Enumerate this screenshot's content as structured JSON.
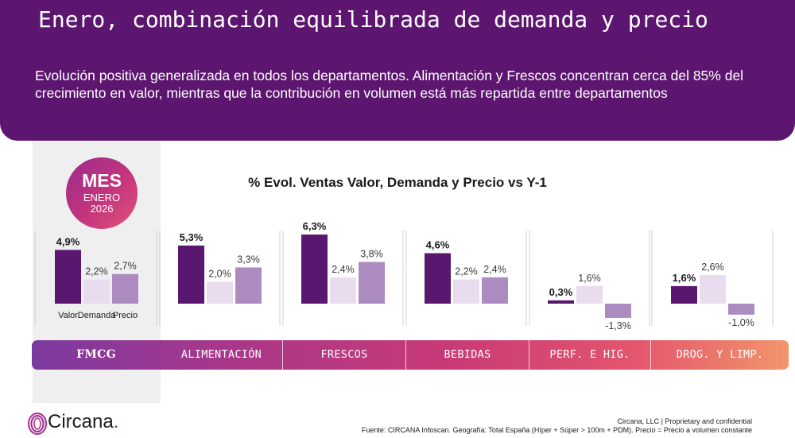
{
  "header": {
    "title": "Enero, combinación equilibrada de demanda y precio",
    "subtitle": "Evolución positiva generalizada en todos los departamentos. Alimentación y Frescos concentran cerca del 85% del crecimiento en valor, mientras que la contribución en volumen está más repartida entre departamentos"
  },
  "badge": {
    "mes": "MES",
    "month": "ENERO",
    "year": "2026"
  },
  "colors": {
    "valor": "#5a176f",
    "demanda": "#e9dcee",
    "precio": "#ab8bc0",
    "header": "#5c1670"
  },
  "chart_data": {
    "type": "bar",
    "title": "% Evol. Ventas Valor, Demanda y Precio vs Y-1",
    "categories": [
      "FMCG",
      "ALIMENTACIÓN",
      "FRESCOS",
      "BEBIDAS",
      "PERF. E HIG.",
      "DROG. Y LIMP."
    ],
    "series": [
      {
        "name": "Valor",
        "values": [
          4.9,
          5.3,
          6.3,
          4.6,
          0.3,
          1.6
        ]
      },
      {
        "name": "Demanda",
        "values": [
          2.2,
          2.0,
          2.4,
          2.2,
          1.6,
          2.6
        ]
      },
      {
        "name": "Precio",
        "values": [
          2.7,
          3.3,
          3.8,
          2.4,
          -1.3,
          -1.0
        ]
      }
    ],
    "value_labels": [
      [
        "4,9%",
        "2,2%",
        "2,7%"
      ],
      [
        "5,3%",
        "2,0%",
        "3,3%"
      ],
      [
        "6,3%",
        "2,4%",
        "3,8%"
      ],
      [
        "4,6%",
        "2,2%",
        "2,4%"
      ],
      [
        "0,3%",
        "1,6%",
        "-1,3%"
      ],
      [
        "1,6%",
        "2,6%",
        "-1,0%"
      ]
    ],
    "x_axis_labels": [
      "Valor",
      "Demanda",
      "Precio"
    ],
    "grid": false,
    "legend": "none"
  },
  "footer": {
    "legal": "Circana, LLC  |  Proprietary and confidential",
    "source": "Fuente: CIRCANA Infoscan. Geografía: Total España (Híper + Súper > 100m + PDM). Precio = Precio a volumen constante"
  },
  "logo": {
    "text": "Circana",
    "dot": "."
  }
}
